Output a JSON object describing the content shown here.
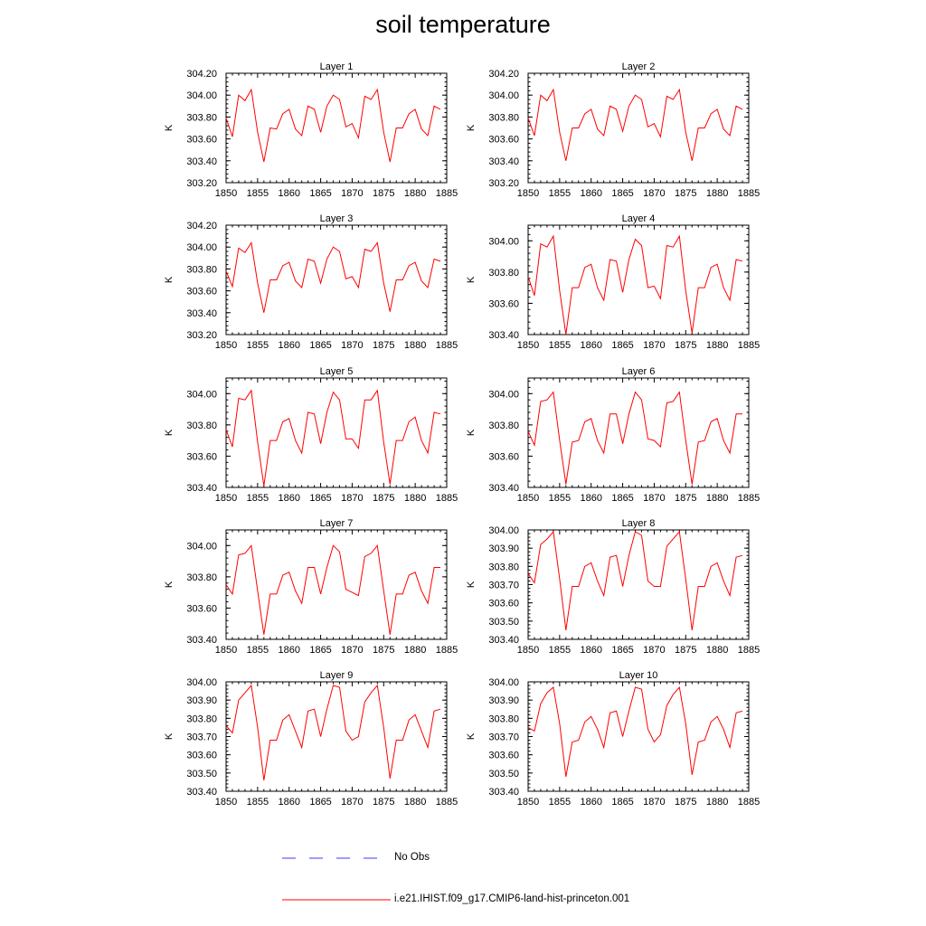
{
  "title": "soil temperature",
  "colors": {
    "model_line": "#ff0000",
    "obs_line": "#3a3aff",
    "axis": "#000000"
  },
  "legend": {
    "obs_label": "No Obs",
    "model_label": "i.e21.IHIST.f09_g17.CMIP6-land-hist-princeton.001"
  },
  "chart_data": [
    {
      "type": "line",
      "title": "Layer 1",
      "ylabel": "K",
      "xlim": [
        1850,
        1885
      ],
      "ylim": [
        303.2,
        304.2
      ],
      "xticks": [
        "1850",
        "1855",
        "1860",
        "1865",
        "1870",
        "1875",
        "1880",
        "1885"
      ],
      "yticks": [
        "303.20",
        "303.40",
        "303.60",
        "303.80",
        "304.00",
        "304.20"
      ],
      "x": [
        1850,
        1851,
        1852,
        1853,
        1854,
        1855,
        1856,
        1857,
        1858,
        1859,
        1860,
        1861,
        1862,
        1863,
        1864,
        1865,
        1866,
        1867,
        1868,
        1869,
        1870,
        1871,
        1872,
        1873,
        1874,
        1875,
        1876,
        1877,
        1878,
        1879,
        1880,
        1881,
        1882,
        1883,
        1884
      ],
      "series": [
        {
          "values": [
            303.79,
            303.62,
            304.0,
            303.95,
            304.05,
            303.66,
            303.39,
            303.7,
            303.69,
            303.83,
            303.87,
            303.69,
            303.63,
            303.9,
            303.87,
            303.66,
            303.9,
            304.0,
            303.96,
            303.71,
            303.74,
            303.61,
            303.99,
            303.96,
            304.05,
            303.66,
            303.39,
            303.7,
            303.7,
            303.83,
            303.87,
            303.69,
            303.63,
            303.9,
            303.87
          ]
        }
      ]
    },
    {
      "type": "line",
      "title": "Layer 2",
      "ylabel": "K",
      "xlim": [
        1850,
        1885
      ],
      "ylim": [
        303.2,
        304.2
      ],
      "xticks": [
        "1850",
        "1855",
        "1860",
        "1865",
        "1870",
        "1875",
        "1880",
        "1885"
      ],
      "yticks": [
        "303.20",
        "303.40",
        "303.60",
        "303.80",
        "304.00",
        "304.20"
      ],
      "x": [
        1850,
        1851,
        1852,
        1853,
        1854,
        1855,
        1856,
        1857,
        1858,
        1859,
        1860,
        1861,
        1862,
        1863,
        1864,
        1865,
        1866,
        1867,
        1868,
        1869,
        1870,
        1871,
        1872,
        1873,
        1874,
        1875,
        1876,
        1877,
        1878,
        1879,
        1880,
        1881,
        1882,
        1883,
        1884
      ],
      "series": [
        {
          "values": [
            303.79,
            303.63,
            304.0,
            303.95,
            304.05,
            303.66,
            303.4,
            303.7,
            303.7,
            303.83,
            303.87,
            303.69,
            303.63,
            303.9,
            303.87,
            303.67,
            303.9,
            304.0,
            303.96,
            303.71,
            303.74,
            303.62,
            303.99,
            303.96,
            304.05,
            303.66,
            303.4,
            303.7,
            303.7,
            303.83,
            303.87,
            303.69,
            303.63,
            303.9,
            303.87
          ]
        }
      ]
    },
    {
      "type": "line",
      "title": "Layer 3",
      "ylabel": "K",
      "xlim": [
        1850,
        1885
      ],
      "ylim": [
        303.2,
        304.2
      ],
      "xticks": [
        "1850",
        "1855",
        "1860",
        "1865",
        "1870",
        "1875",
        "1880",
        "1885"
      ],
      "yticks": [
        "303.20",
        "303.40",
        "303.60",
        "303.80",
        "304.00",
        "304.20"
      ],
      "x": [
        1850,
        1851,
        1852,
        1853,
        1854,
        1855,
        1856,
        1857,
        1858,
        1859,
        1860,
        1861,
        1862,
        1863,
        1864,
        1865,
        1866,
        1867,
        1868,
        1869,
        1870,
        1871,
        1872,
        1873,
        1874,
        1875,
        1876,
        1877,
        1878,
        1879,
        1880,
        1881,
        1882,
        1883,
        1884
      ],
      "series": [
        {
          "values": [
            303.78,
            303.64,
            303.99,
            303.95,
            304.04,
            303.67,
            303.4,
            303.7,
            303.7,
            303.83,
            303.86,
            303.69,
            303.63,
            303.89,
            303.87,
            303.67,
            303.89,
            304.0,
            303.96,
            303.71,
            303.73,
            303.63,
            303.98,
            303.96,
            304.04,
            303.67,
            303.41,
            303.7,
            303.7,
            303.83,
            303.86,
            303.69,
            303.63,
            303.89,
            303.87
          ]
        }
      ]
    },
    {
      "type": "line",
      "title": "Layer 4",
      "ylabel": "K",
      "xlim": [
        1850,
        1885
      ],
      "ylim": [
        303.4,
        304.1
      ],
      "xticks": [
        "1850",
        "1855",
        "1860",
        "1865",
        "1870",
        "1875",
        "1880",
        "1885"
      ],
      "yticks": [
        "303.40",
        "303.60",
        "303.80",
        "304.00"
      ],
      "x": [
        1850,
        1851,
        1852,
        1853,
        1854,
        1855,
        1856,
        1857,
        1858,
        1859,
        1860,
        1861,
        1862,
        1863,
        1864,
        1865,
        1866,
        1867,
        1868,
        1869,
        1870,
        1871,
        1872,
        1873,
        1874,
        1875,
        1876,
        1877,
        1878,
        1879,
        1880,
        1881,
        1882,
        1883,
        1884
      ],
      "series": [
        {
          "values": [
            303.77,
            303.65,
            303.98,
            303.96,
            304.03,
            303.68,
            303.4,
            303.7,
            303.7,
            303.83,
            303.85,
            303.7,
            303.62,
            303.88,
            303.87,
            303.67,
            303.88,
            304.01,
            303.97,
            303.7,
            303.71,
            303.63,
            303.97,
            303.96,
            304.03,
            303.68,
            303.41,
            303.7,
            303.7,
            303.83,
            303.85,
            303.7,
            303.62,
            303.88,
            303.87
          ]
        }
      ]
    },
    {
      "type": "line",
      "title": "Layer 5",
      "ylabel": "K",
      "xlim": [
        1850,
        1885
      ],
      "ylim": [
        303.4,
        304.1
      ],
      "xticks": [
        "1850",
        "1855",
        "1860",
        "1865",
        "1870",
        "1875",
        "1880",
        "1885"
      ],
      "yticks": [
        "303.40",
        "303.60",
        "303.80",
        "304.00"
      ],
      "x": [
        1850,
        1851,
        1852,
        1853,
        1854,
        1855,
        1856,
        1857,
        1858,
        1859,
        1860,
        1861,
        1862,
        1863,
        1864,
        1865,
        1866,
        1867,
        1868,
        1869,
        1870,
        1871,
        1872,
        1873,
        1874,
        1875,
        1876,
        1877,
        1878,
        1879,
        1880,
        1881,
        1882,
        1883,
        1884
      ],
      "series": [
        {
          "values": [
            303.77,
            303.66,
            303.97,
            303.96,
            304.02,
            303.69,
            303.41,
            303.7,
            303.7,
            303.82,
            303.84,
            303.7,
            303.62,
            303.88,
            303.87,
            303.68,
            303.88,
            304.01,
            303.96,
            303.71,
            303.71,
            303.65,
            303.96,
            303.96,
            304.02,
            303.69,
            303.42,
            303.7,
            303.7,
            303.82,
            303.85,
            303.7,
            303.62,
            303.88,
            303.87
          ]
        }
      ]
    },
    {
      "type": "line",
      "title": "Layer 6",
      "ylabel": "K",
      "xlim": [
        1850,
        1885
      ],
      "ylim": [
        303.4,
        304.1
      ],
      "xticks": [
        "1850",
        "1855",
        "1860",
        "1865",
        "1870",
        "1875",
        "1880",
        "1885"
      ],
      "yticks": [
        "303.40",
        "303.60",
        "303.80",
        "304.00"
      ],
      "x": [
        1850,
        1851,
        1852,
        1853,
        1854,
        1855,
        1856,
        1857,
        1858,
        1859,
        1860,
        1861,
        1862,
        1863,
        1864,
        1865,
        1866,
        1867,
        1868,
        1869,
        1870,
        1871,
        1872,
        1873,
        1874,
        1875,
        1876,
        1877,
        1878,
        1879,
        1880,
        1881,
        1882,
        1883,
        1884
      ],
      "series": [
        {
          "values": [
            303.76,
            303.67,
            303.95,
            303.96,
            304.01,
            303.7,
            303.42,
            303.69,
            303.7,
            303.82,
            303.84,
            303.7,
            303.62,
            303.87,
            303.87,
            303.68,
            303.87,
            304.01,
            303.96,
            303.71,
            303.7,
            303.66,
            303.94,
            303.95,
            304.01,
            303.7,
            303.42,
            303.69,
            303.7,
            303.82,
            303.84,
            303.7,
            303.62,
            303.87,
            303.87
          ]
        }
      ]
    },
    {
      "type": "line",
      "title": "Layer 7",
      "ylabel": "K",
      "xlim": [
        1850,
        1885
      ],
      "ylim": [
        303.4,
        304.1
      ],
      "xticks": [
        "1850",
        "1855",
        "1860",
        "1865",
        "1870",
        "1875",
        "1880",
        "1885"
      ],
      "yticks": [
        "303.40",
        "303.60",
        "303.80",
        "304.00"
      ],
      "x": [
        1850,
        1851,
        1852,
        1853,
        1854,
        1855,
        1856,
        1857,
        1858,
        1859,
        1860,
        1861,
        1862,
        1863,
        1864,
        1865,
        1866,
        1867,
        1868,
        1869,
        1870,
        1871,
        1872,
        1873,
        1874,
        1875,
        1876,
        1877,
        1878,
        1879,
        1880,
        1881,
        1882,
        1883,
        1884
      ],
      "series": [
        {
          "values": [
            303.75,
            303.69,
            303.94,
            303.95,
            304.0,
            303.71,
            303.43,
            303.69,
            303.69,
            303.81,
            303.83,
            303.71,
            303.63,
            303.86,
            303.86,
            303.69,
            303.86,
            304.0,
            303.96,
            303.72,
            303.7,
            303.68,
            303.93,
            303.95,
            304.0,
            303.71,
            303.43,
            303.69,
            303.69,
            303.81,
            303.83,
            303.71,
            303.63,
            303.86,
            303.86
          ]
        }
      ]
    },
    {
      "type": "line",
      "title": "Layer 8",
      "ylabel": "K",
      "xlim": [
        1850,
        1885
      ],
      "ylim": [
        303.4,
        304.0
      ],
      "xticks": [
        "1850",
        "1855",
        "1860",
        "1865",
        "1870",
        "1875",
        "1880",
        "1885"
      ],
      "yticks": [
        "303.40",
        "303.50",
        "303.60",
        "303.70",
        "303.80",
        "303.90",
        "304.00"
      ],
      "x": [
        1850,
        1851,
        1852,
        1853,
        1854,
        1855,
        1856,
        1857,
        1858,
        1859,
        1860,
        1861,
        1862,
        1863,
        1864,
        1865,
        1866,
        1867,
        1868,
        1869,
        1870,
        1871,
        1872,
        1873,
        1874,
        1875,
        1876,
        1877,
        1878,
        1879,
        1880,
        1881,
        1882,
        1883,
        1884
      ],
      "series": [
        {
          "values": [
            303.76,
            303.71,
            303.92,
            303.95,
            303.99,
            303.73,
            303.45,
            303.69,
            303.69,
            303.8,
            303.82,
            303.72,
            303.64,
            303.85,
            303.86,
            303.69,
            303.86,
            303.99,
            303.97,
            303.72,
            303.69,
            303.69,
            303.91,
            303.95,
            303.99,
            303.73,
            303.45,
            303.69,
            303.69,
            303.8,
            303.82,
            303.72,
            303.64,
            303.85,
            303.86
          ]
        }
      ]
    },
    {
      "type": "line",
      "title": "Layer 9",
      "ylabel": "K",
      "xlim": [
        1850,
        1885
      ],
      "ylim": [
        303.4,
        304.0
      ],
      "xticks": [
        "1850",
        "1855",
        "1860",
        "1865",
        "1870",
        "1875",
        "1880",
        "1885"
      ],
      "yticks": [
        "303.40",
        "303.50",
        "303.60",
        "303.70",
        "303.80",
        "303.90",
        "304.00"
      ],
      "x": [
        1850,
        1851,
        1852,
        1853,
        1854,
        1855,
        1856,
        1857,
        1858,
        1859,
        1860,
        1861,
        1862,
        1863,
        1864,
        1865,
        1866,
        1867,
        1868,
        1869,
        1870,
        1871,
        1872,
        1873,
        1874,
        1875,
        1876,
        1877,
        1878,
        1879,
        1880,
        1881,
        1882,
        1883,
        1884
      ],
      "series": [
        {
          "values": [
            303.76,
            303.72,
            303.9,
            303.94,
            303.98,
            303.75,
            303.46,
            303.68,
            303.68,
            303.79,
            303.82,
            303.73,
            303.64,
            303.84,
            303.85,
            303.7,
            303.85,
            303.98,
            303.97,
            303.73,
            303.68,
            303.7,
            303.89,
            303.94,
            303.98,
            303.75,
            303.47,
            303.68,
            303.68,
            303.79,
            303.82,
            303.73,
            303.64,
            303.84,
            303.85
          ]
        }
      ]
    },
    {
      "type": "line",
      "title": "Layer 10",
      "ylabel": "K",
      "xlim": [
        1850,
        1885
      ],
      "ylim": [
        303.4,
        304.0
      ],
      "xticks": [
        "1850",
        "1855",
        "1860",
        "1865",
        "1870",
        "1875",
        "1880",
        "1885"
      ],
      "yticks": [
        "303.40",
        "303.50",
        "303.60",
        "303.70",
        "303.80",
        "303.90",
        "304.00"
      ],
      "x": [
        1850,
        1851,
        1852,
        1853,
        1854,
        1855,
        1856,
        1857,
        1858,
        1859,
        1860,
        1861,
        1862,
        1863,
        1864,
        1865,
        1866,
        1867,
        1868,
        1869,
        1870,
        1871,
        1872,
        1873,
        1874,
        1875,
        1876,
        1877,
        1878,
        1879,
        1880,
        1881,
        1882,
        1883,
        1884
      ],
      "series": [
        {
          "values": [
            303.75,
            303.73,
            303.88,
            303.94,
            303.97,
            303.77,
            303.48,
            303.67,
            303.68,
            303.78,
            303.81,
            303.74,
            303.64,
            303.83,
            303.84,
            303.7,
            303.84,
            303.97,
            303.96,
            303.74,
            303.67,
            303.71,
            303.87,
            303.93,
            303.97,
            303.77,
            303.49,
            303.67,
            303.68,
            303.78,
            303.81,
            303.74,
            303.64,
            303.83,
            303.84
          ]
        }
      ]
    }
  ]
}
